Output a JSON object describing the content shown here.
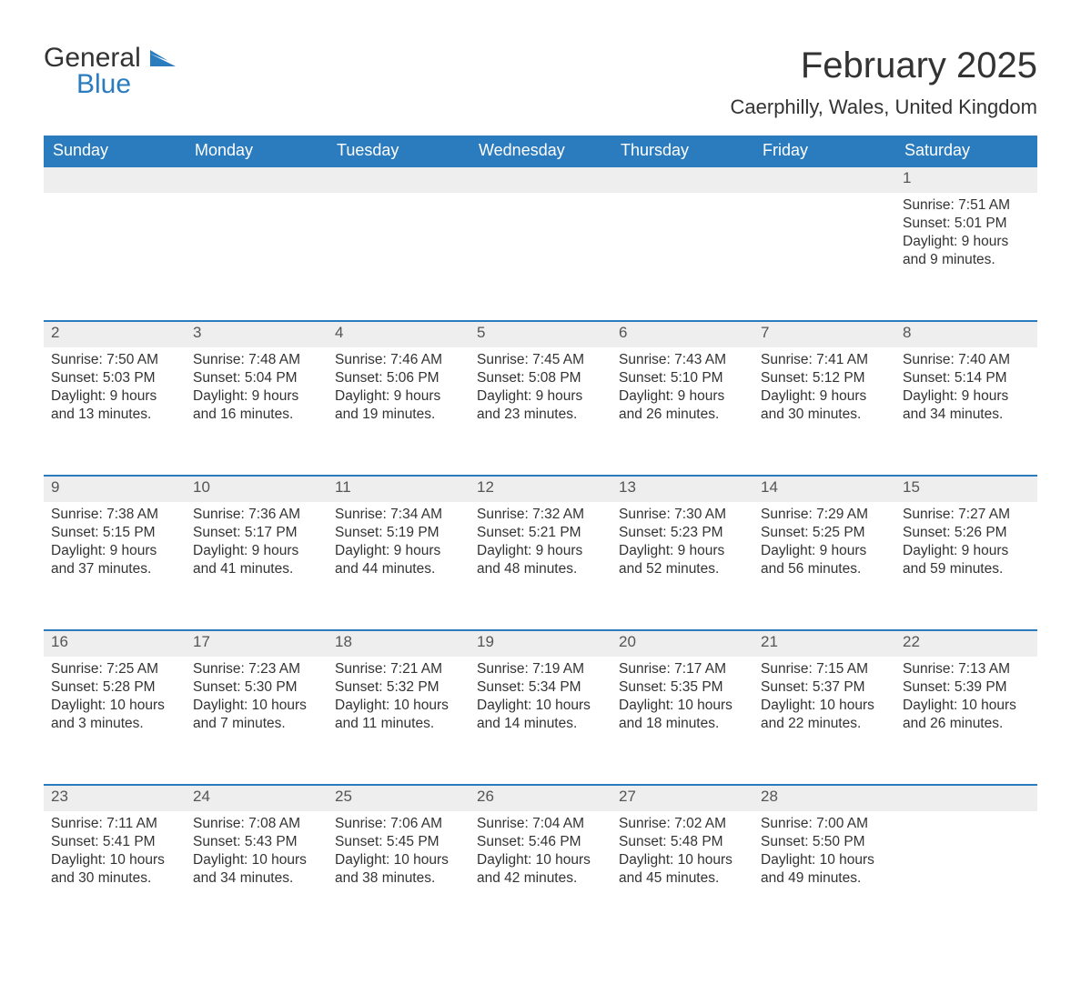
{
  "logo": {
    "line1": "General",
    "line2": "Blue"
  },
  "header": {
    "month_title": "February 2025",
    "location": "Caerphilly, Wales, United Kingdom"
  },
  "colors": {
    "header_bg": "#2b7bbf",
    "header_text": "#ffffff",
    "daynum_bg": "#eeeeee",
    "row_border": "#2b7bbf",
    "text": "#333333",
    "background": "#ffffff"
  },
  "typography": {
    "month_title_pt": 40,
    "location_pt": 22,
    "weekday_pt": 18,
    "daynum_pt": 17,
    "body_pt": 15.5
  },
  "weekdays": [
    "Sunday",
    "Monday",
    "Tuesday",
    "Wednesday",
    "Thursday",
    "Friday",
    "Saturday"
  ],
  "first_weekday_index": 6,
  "days": [
    {
      "n": 1,
      "sunrise": "7:51 AM",
      "sunset": "5:01 PM",
      "daylight": "9 hours and 9 minutes."
    },
    {
      "n": 2,
      "sunrise": "7:50 AM",
      "sunset": "5:03 PM",
      "daylight": "9 hours and 13 minutes."
    },
    {
      "n": 3,
      "sunrise": "7:48 AM",
      "sunset": "5:04 PM",
      "daylight": "9 hours and 16 minutes."
    },
    {
      "n": 4,
      "sunrise": "7:46 AM",
      "sunset": "5:06 PM",
      "daylight": "9 hours and 19 minutes."
    },
    {
      "n": 5,
      "sunrise": "7:45 AM",
      "sunset": "5:08 PM",
      "daylight": "9 hours and 23 minutes."
    },
    {
      "n": 6,
      "sunrise": "7:43 AM",
      "sunset": "5:10 PM",
      "daylight": "9 hours and 26 minutes."
    },
    {
      "n": 7,
      "sunrise": "7:41 AM",
      "sunset": "5:12 PM",
      "daylight": "9 hours and 30 minutes."
    },
    {
      "n": 8,
      "sunrise": "7:40 AM",
      "sunset": "5:14 PM",
      "daylight": "9 hours and 34 minutes."
    },
    {
      "n": 9,
      "sunrise": "7:38 AM",
      "sunset": "5:15 PM",
      "daylight": "9 hours and 37 minutes."
    },
    {
      "n": 10,
      "sunrise": "7:36 AM",
      "sunset": "5:17 PM",
      "daylight": "9 hours and 41 minutes."
    },
    {
      "n": 11,
      "sunrise": "7:34 AM",
      "sunset": "5:19 PM",
      "daylight": "9 hours and 44 minutes."
    },
    {
      "n": 12,
      "sunrise": "7:32 AM",
      "sunset": "5:21 PM",
      "daylight": "9 hours and 48 minutes."
    },
    {
      "n": 13,
      "sunrise": "7:30 AM",
      "sunset": "5:23 PM",
      "daylight": "9 hours and 52 minutes."
    },
    {
      "n": 14,
      "sunrise": "7:29 AM",
      "sunset": "5:25 PM",
      "daylight": "9 hours and 56 minutes."
    },
    {
      "n": 15,
      "sunrise": "7:27 AM",
      "sunset": "5:26 PM",
      "daylight": "9 hours and 59 minutes."
    },
    {
      "n": 16,
      "sunrise": "7:25 AM",
      "sunset": "5:28 PM",
      "daylight": "10 hours and 3 minutes."
    },
    {
      "n": 17,
      "sunrise": "7:23 AM",
      "sunset": "5:30 PM",
      "daylight": "10 hours and 7 minutes."
    },
    {
      "n": 18,
      "sunrise": "7:21 AM",
      "sunset": "5:32 PM",
      "daylight": "10 hours and 11 minutes."
    },
    {
      "n": 19,
      "sunrise": "7:19 AM",
      "sunset": "5:34 PM",
      "daylight": "10 hours and 14 minutes."
    },
    {
      "n": 20,
      "sunrise": "7:17 AM",
      "sunset": "5:35 PM",
      "daylight": "10 hours and 18 minutes."
    },
    {
      "n": 21,
      "sunrise": "7:15 AM",
      "sunset": "5:37 PM",
      "daylight": "10 hours and 22 minutes."
    },
    {
      "n": 22,
      "sunrise": "7:13 AM",
      "sunset": "5:39 PM",
      "daylight": "10 hours and 26 minutes."
    },
    {
      "n": 23,
      "sunrise": "7:11 AM",
      "sunset": "5:41 PM",
      "daylight": "10 hours and 30 minutes."
    },
    {
      "n": 24,
      "sunrise": "7:08 AM",
      "sunset": "5:43 PM",
      "daylight": "10 hours and 34 minutes."
    },
    {
      "n": 25,
      "sunrise": "7:06 AM",
      "sunset": "5:45 PM",
      "daylight": "10 hours and 38 minutes."
    },
    {
      "n": 26,
      "sunrise": "7:04 AM",
      "sunset": "5:46 PM",
      "daylight": "10 hours and 42 minutes."
    },
    {
      "n": 27,
      "sunrise": "7:02 AM",
      "sunset": "5:48 PM",
      "daylight": "10 hours and 45 minutes."
    },
    {
      "n": 28,
      "sunrise": "7:00 AM",
      "sunset": "5:50 PM",
      "daylight": "10 hours and 49 minutes."
    }
  ],
  "labels": {
    "sunrise": "Sunrise: ",
    "sunset": "Sunset: ",
    "daylight": "Daylight: "
  }
}
